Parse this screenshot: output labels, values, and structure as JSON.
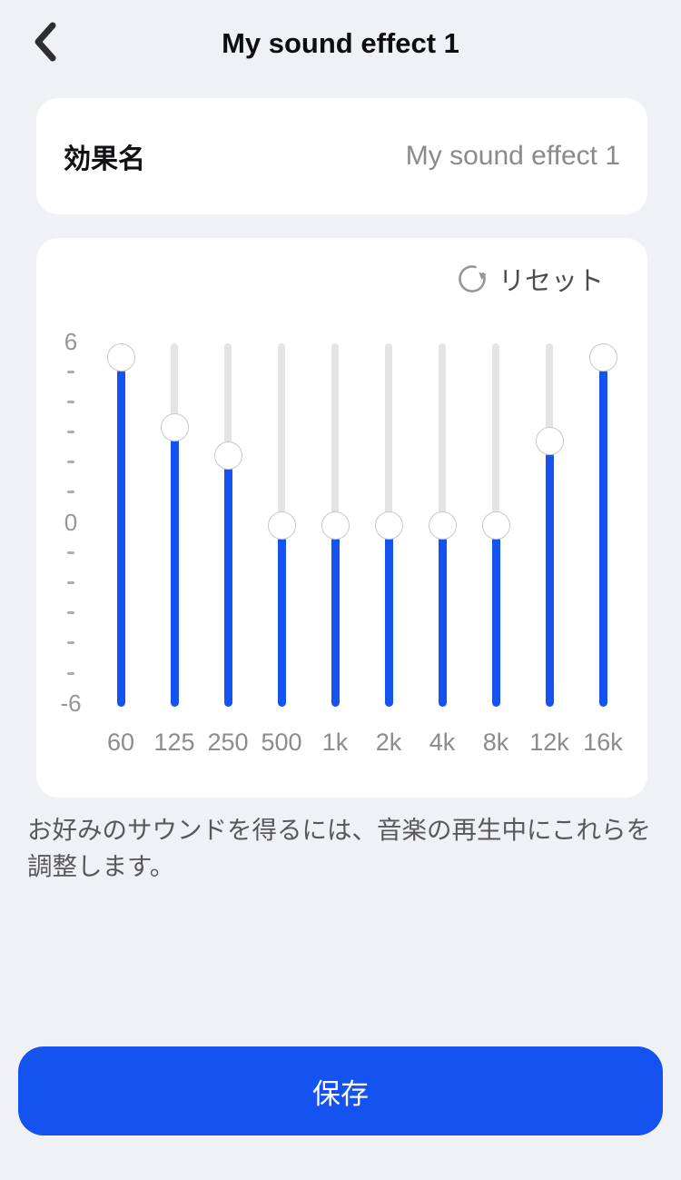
{
  "header": {
    "title": "My sound effect 1",
    "back_icon": "chevron-left"
  },
  "name_card": {
    "label": "効果名",
    "value": "My sound effect 1"
  },
  "equalizer": {
    "reset_label": "リセット",
    "reset_icon": "circular-arrow-reset",
    "scale": {
      "max": 6,
      "min": -6,
      "tick_step": 1,
      "labels": [
        "6",
        "0",
        "-6"
      ]
    },
    "bands": [
      {
        "freq": "60",
        "value": 6
      },
      {
        "freq": "125",
        "value": 3.5
      },
      {
        "freq": "250",
        "value": 2.5
      },
      {
        "freq": "500",
        "value": 0
      },
      {
        "freq": "1k",
        "value": 0
      },
      {
        "freq": "2k",
        "value": 0
      },
      {
        "freq": "4k",
        "value": 0
      },
      {
        "freq": "8k",
        "value": 0
      },
      {
        "freq": "12k",
        "value": 3
      },
      {
        "freq": "16k",
        "value": 6
      }
    ]
  },
  "description": "お好みのサウンドを得るには、音楽の再生中にこれらを調整します。",
  "save_button": {
    "label": "保存"
  },
  "colors": {
    "accent": "#1453F0",
    "track": "#E4E4E7",
    "page_bg": "#F0F1F4",
    "card_bg": "#FFFFFF",
    "thumb_border": "#C8C8CC",
    "text_primary": "#121214",
    "text_secondary": "#8A8A8E",
    "axis_text": "#95959A"
  }
}
